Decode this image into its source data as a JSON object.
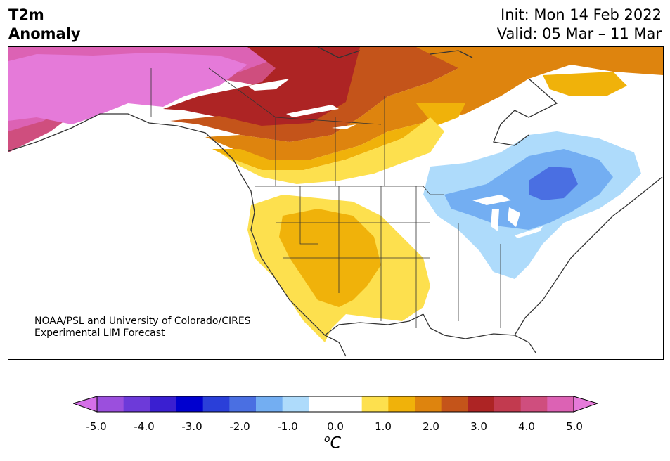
{
  "header": {
    "variable_line1": "T2m",
    "variable_line2": "Anomaly",
    "init": "Init: Mon 14 Feb 2022",
    "valid": "Valid: 05 Mar – 11 Mar"
  },
  "credit": {
    "line1": "NOAA/PSL and University of Colorado/CIRES",
    "line2": "Experimental LIM Forecast"
  },
  "colorbar": {
    "unit": "oC",
    "unit_base": "C",
    "unit_super": "o",
    "ticks": [
      "-5.0",
      "-4.0",
      "-3.0",
      "-2.0",
      "-1.0",
      "0.0",
      "1.0",
      "2.0",
      "3.0",
      "4.0",
      "5.0"
    ],
    "colors": [
      "#d56fe8",
      "#9b4fdd",
      "#6d3ad9",
      "#3a1fd1",
      "#0000cf",
      "#2a3fd9",
      "#4a6fe2",
      "#73aef2",
      "#aedbfb",
      "#ffffff",
      "#ffffff",
      "#fde04e",
      "#f0b20a",
      "#de840e",
      "#c4541a",
      "#ad2424",
      "#c23a4f",
      "#cf4e7e",
      "#dc62b4",
      "#e57ad9"
    ]
  },
  "map": {
    "region": "North America",
    "land_color": "#ffffff",
    "coast_color": "#333333"
  }
}
